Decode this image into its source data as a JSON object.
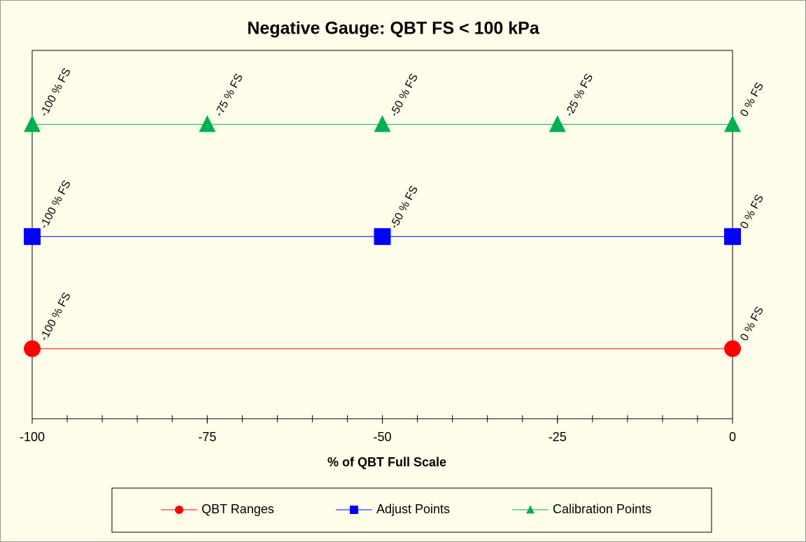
{
  "chart_data": {
    "type": "line",
    "title": "Negative Gauge: QBT FS < 100 kPa",
    "x_label": "% of QBT Full Scale",
    "xlim": [
      -100,
      0
    ],
    "xticks": [
      -100,
      -75,
      -50,
      -25,
      0
    ],
    "xminorticks": [
      -100,
      -95,
      -90,
      -85,
      -80,
      -75,
      -70,
      -65,
      -60,
      -55,
      -50,
      -45,
      -40,
      -35,
      -30,
      -25,
      -20,
      -15,
      -10,
      -5,
      0
    ],
    "ylim": [
      0.375,
      3.66
    ],
    "series": [
      {
        "name": "QBT Ranges",
        "color": "#ff0000",
        "marker": "circle",
        "x": [
          -100,
          0
        ],
        "values": [
          1,
          1
        ],
        "labels": [
          "-100 % FS",
          "0 % FS"
        ]
      },
      {
        "name": "Adjust Points",
        "color": "#0000ff",
        "marker": "square",
        "x": [
          -100,
          -50,
          0
        ],
        "values": [
          2,
          2,
          2
        ],
        "labels": [
          "-100 % FS",
          "-50 % FS",
          "0 % FS"
        ]
      },
      {
        "name": "Calibration Points",
        "color": "#00b050",
        "marker": "triangle",
        "x": [
          -100,
          -75,
          -50,
          -25,
          0
        ],
        "values": [
          3,
          3,
          3,
          3,
          3
        ],
        "labels": [
          "-100 % FS",
          "-75 % FS",
          "-50 % FS",
          "-25 % FS",
          "0 % FS"
        ]
      }
    ],
    "legend": "bottom"
  }
}
